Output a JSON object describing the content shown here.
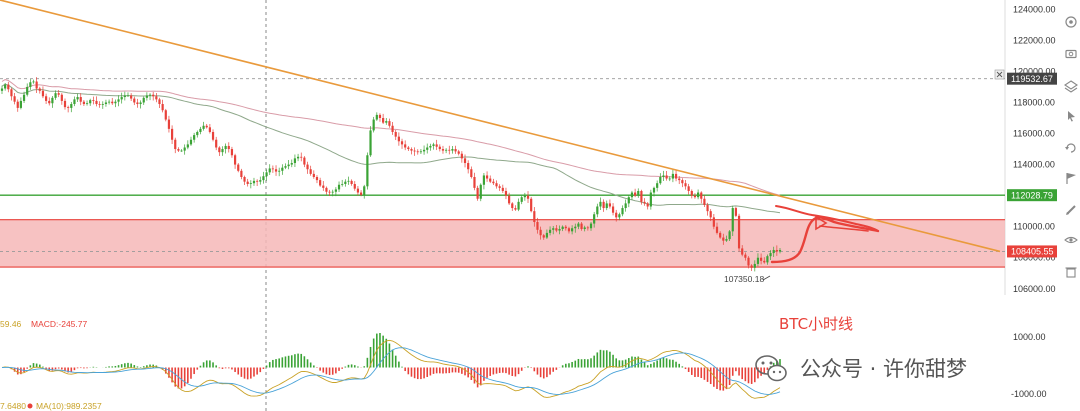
{
  "chart_data": [
    {
      "type": "candlestick",
      "title": "BTC小时线",
      "y_axis": {
        "range": [
          105600,
          124600
        ],
        "tick_labels": [
          "124000.00",
          "122000.00",
          "120000.00",
          "118000.00",
          "116000.00",
          "114000.00",
          "112000.00",
          "110000.00",
          "108000.00",
          "106000.00"
        ]
      },
      "price_badges": [
        {
          "value": "119532.67",
          "color": "#444444"
        },
        {
          "value": "112028.79",
          "color": "#3aa335"
        },
        {
          "value": "108405.55",
          "color": "#e8413a"
        }
      ],
      "horizontal_lines": [
        {
          "y": 112030,
          "color": "#3aa335",
          "style": "solid"
        },
        {
          "y": 119532.67,
          "color": "#999999",
          "style": "dashed"
        },
        {
          "y": 108405.55,
          "color": "#999999",
          "style": "dashed"
        }
      ],
      "zone": {
        "y_top": 110450,
        "y_bottom": 107400,
        "color": "#f6b7b7"
      },
      "trendline": {
        "points": [
          [
            0,
            124600
          ],
          [
            1000,
            108405
          ]
        ],
        "color": "#e99a3c"
      },
      "low_annotation": "107350.18",
      "moving_averages": [
        {
          "color": "#8fa88b"
        },
        {
          "color": "#d99ca8"
        }
      ],
      "series_close": [
        118900,
        119150,
        118850,
        118400,
        118050,
        117650,
        118100,
        118500,
        119000,
        119300,
        119350,
        118900,
        118750,
        118400,
        118100,
        117950,
        118300,
        118600,
        118500,
        118100,
        117700,
        117650,
        117900,
        118200,
        118350,
        118050,
        117900,
        117950,
        118150,
        118100,
        117900,
        117850,
        117900,
        118000,
        118050,
        117950,
        118050,
        118200,
        118350,
        118450,
        118450,
        118250,
        118000,
        117900,
        118000,
        118300,
        118450,
        118500,
        118400,
        118200,
        117900,
        117500,
        116900,
        116300,
        115600,
        115000,
        114900,
        114900,
        115100,
        115300,
        115600,
        115900,
        116100,
        116300,
        116500,
        116400,
        116100,
        115600,
        115100,
        114800,
        115000,
        115200,
        115000,
        114600,
        114000,
        113600,
        113200,
        112900,
        112750,
        112800,
        112950,
        112900,
        113000,
        113250,
        113500,
        113750,
        113700,
        113550,
        113600,
        113800,
        113900,
        114000,
        114100,
        114400,
        114500,
        114450,
        114000,
        113700,
        113400,
        113200,
        113000,
        112650,
        112500,
        112250,
        112200,
        112250,
        112400,
        112700,
        112750,
        112900,
        112950,
        112750,
        112450,
        112200,
        112050,
        112600,
        114600,
        116200,
        116900,
        117200,
        117000,
        116700,
        116800,
        116500,
        116100,
        115800,
        115500,
        115300,
        115100,
        115000,
        114900,
        114850,
        114800,
        114850,
        114950,
        115100,
        115200,
        115300,
        115150,
        115000,
        114900,
        114950,
        114900,
        115000,
        114850,
        114700,
        114400,
        114100,
        113700,
        113200,
        112500,
        111800,
        112700,
        113300,
        113100,
        112900,
        112800,
        112600,
        112500,
        112300,
        112000,
        111500,
        111200,
        111100,
        111600,
        111900,
        112000,
        111800,
        111000,
        110300,
        109800,
        109450,
        109300,
        109600,
        109800,
        109900,
        109750,
        109850,
        110000,
        109900,
        109700,
        109900,
        110000,
        110200,
        109850,
        109950,
        109900,
        110200,
        110800,
        111300,
        111600,
        111200,
        111500,
        111300,
        110900,
        110600,
        110800,
        111200,
        111500,
        111900,
        112200,
        112000,
        112300,
        111600,
        111500,
        111300,
        112200,
        112500,
        112800,
        113200,
        113300,
        113100,
        113100,
        113400,
        113100,
        113000,
        112800,
        112600,
        112300,
        112000,
        111900,
        112200,
        111800,
        111400,
        111000,
        110600,
        110000,
        109600,
        109300,
        109100,
        109200,
        109700,
        111200,
        110700,
        108600,
        108200,
        108000,
        107500,
        107350,
        107600,
        108000,
        107800,
        107700,
        108100,
        108300,
        108500,
        108400,
        108500
      ]
    },
    {
      "type": "macd",
      "labels": {
        "macd_left": "59.46",
        "macd": "MACD:-245.77",
        "dif_left": "7.6480",
        "ma": "MA(10):989.2357"
      },
      "y_axis": {
        "range": [
          -1300,
          1300
        ],
        "tick_labels": [
          "1000.00",
          "-1000.00"
        ]
      }
    }
  ],
  "watermark": {
    "text": "公众号 · 许你甜梦",
    "icon": "wechat-icon"
  },
  "toolbar": {
    "icons": [
      "gear-icon",
      "camera-icon",
      "layers-icon",
      "cursor-icon",
      "undo-icon",
      "flag-icon",
      "pencil-icon",
      "eye-icon",
      "trash-icon"
    ]
  },
  "colors": {
    "up": "#3aa335",
    "down": "#e8413a",
    "macd_up": "#3aa335",
    "macd_down": "#e8413a"
  }
}
